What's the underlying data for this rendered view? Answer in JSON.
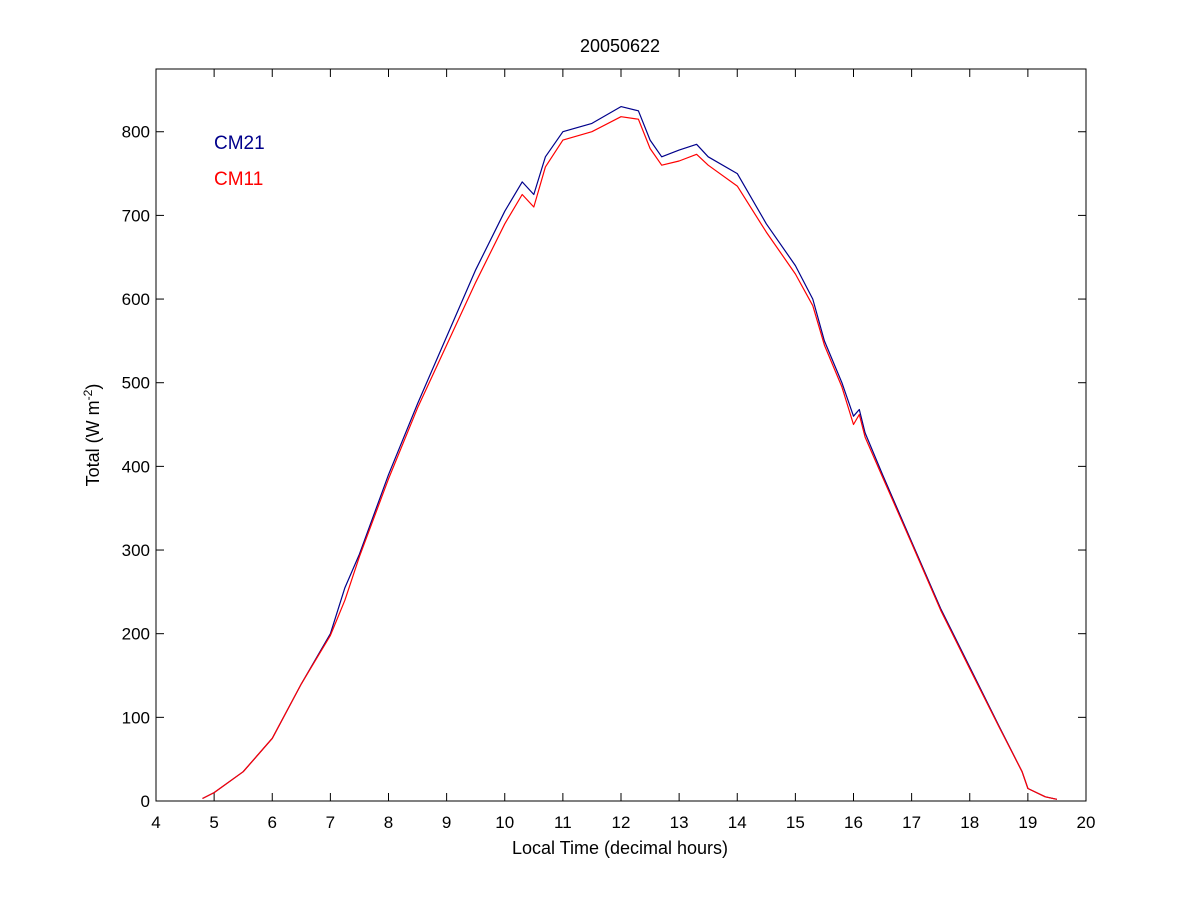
{
  "chart_data": {
    "type": "line",
    "title": "20050622",
    "xlabel": "Local Time (decimal hours)",
    "ylabel": {
      "main": "Total (W m",
      "sup": "-2",
      "close": ")"
    },
    "xlim": [
      4,
      20
    ],
    "ylim": [
      0,
      875
    ],
    "x_ticks": [
      4,
      5,
      6,
      7,
      8,
      9,
      10,
      11,
      12,
      13,
      14,
      15,
      16,
      17,
      18,
      19,
      20
    ],
    "y_ticks": [
      0,
      100,
      200,
      300,
      400,
      500,
      600,
      700,
      800
    ],
    "grid": false,
    "legend_position": "top-left",
    "series": [
      {
        "name": "CM21",
        "color": "#00008b",
        "points": [
          [
            4.8,
            3
          ],
          [
            5,
            10
          ],
          [
            5.5,
            35
          ],
          [
            6,
            75
          ],
          [
            6.5,
            140
          ],
          [
            7,
            200
          ],
          [
            7.25,
            255
          ],
          [
            7.5,
            295
          ],
          [
            8,
            390
          ],
          [
            8.5,
            475
          ],
          [
            9,
            555
          ],
          [
            9.5,
            635
          ],
          [
            10,
            705
          ],
          [
            10.3,
            740
          ],
          [
            10.5,
            725
          ],
          [
            10.7,
            770
          ],
          [
            11,
            800
          ],
          [
            11.5,
            810
          ],
          [
            12,
            830
          ],
          [
            12.3,
            825
          ],
          [
            12.5,
            790
          ],
          [
            12.7,
            770
          ],
          [
            13,
            778
          ],
          [
            13.3,
            785
          ],
          [
            13.5,
            770
          ],
          [
            14,
            750
          ],
          [
            14.5,
            690
          ],
          [
            15,
            640
          ],
          [
            15.3,
            600
          ],
          [
            15.5,
            550
          ],
          [
            15.8,
            500
          ],
          [
            16,
            460
          ],
          [
            16.1,
            468
          ],
          [
            16.2,
            440
          ],
          [
            16.5,
            390
          ],
          [
            17,
            310
          ],
          [
            17.5,
            230
          ],
          [
            18,
            160
          ],
          [
            18.5,
            90
          ],
          [
            18.9,
            35
          ],
          [
            19,
            15
          ],
          [
            19.3,
            5
          ],
          [
            19.5,
            2
          ]
        ]
      },
      {
        "name": "CM11",
        "color": "#ff0000",
        "points": [
          [
            4.8,
            3
          ],
          [
            5,
            10
          ],
          [
            5.5,
            35
          ],
          [
            6,
            75
          ],
          [
            6.5,
            140
          ],
          [
            7,
            198
          ],
          [
            7.25,
            240
          ],
          [
            7.5,
            292
          ],
          [
            8,
            385
          ],
          [
            8.5,
            470
          ],
          [
            9,
            545
          ],
          [
            9.5,
            620
          ],
          [
            10,
            690
          ],
          [
            10.3,
            725
          ],
          [
            10.5,
            710
          ],
          [
            10.7,
            758
          ],
          [
            11,
            790
          ],
          [
            11.5,
            800
          ],
          [
            12,
            818
          ],
          [
            12.3,
            815
          ],
          [
            12.5,
            780
          ],
          [
            12.7,
            760
          ],
          [
            13,
            765
          ],
          [
            13.3,
            773
          ],
          [
            13.5,
            760
          ],
          [
            14,
            735
          ],
          [
            14.5,
            680
          ],
          [
            15,
            630
          ],
          [
            15.3,
            592
          ],
          [
            15.5,
            545
          ],
          [
            15.8,
            495
          ],
          [
            16,
            450
          ],
          [
            16.1,
            462
          ],
          [
            16.2,
            435
          ],
          [
            16.5,
            387
          ],
          [
            17,
            308
          ],
          [
            17.5,
            228
          ],
          [
            18,
            158
          ],
          [
            18.5,
            89
          ],
          [
            18.9,
            35
          ],
          [
            19,
            15
          ],
          [
            19.3,
            5
          ],
          [
            19.5,
            2
          ]
        ]
      }
    ]
  }
}
